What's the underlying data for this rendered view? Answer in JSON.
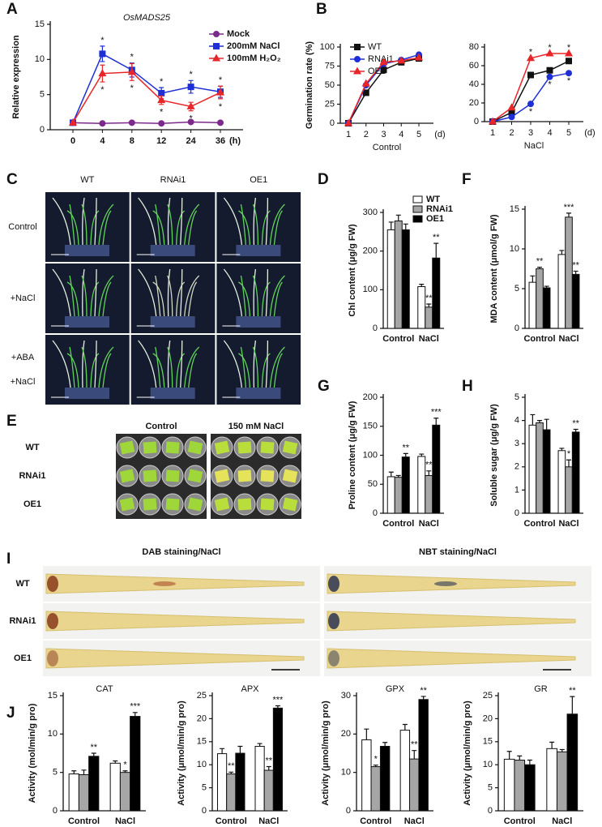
{
  "chart_data": [
    {
      "type": "line",
      "panel": "A",
      "title": "OsMADS25",
      "ylabel": "Relative expression",
      "xunit": "(h)",
      "categories": [
        "0",
        "4",
        "8",
        "12",
        "24",
        "36"
      ],
      "ylim": [
        0,
        15
      ],
      "yticks": [
        0,
        5,
        10,
        15
      ],
      "legend": "upper right",
      "series": [
        {
          "name": "Mock",
          "color": "#7b2a8c",
          "marker": "circle",
          "values": [
            1,
            0.9,
            1,
            0.9,
            1.1,
            1
          ]
        },
        {
          "name": "200mM NaCl",
          "color": "#1f2fd6",
          "marker": "square",
          "values": [
            1,
            10.8,
            8.5,
            5.2,
            6.1,
            5.4
          ],
          "errors": [
            0.1,
            1.1,
            1.0,
            0.8,
            0.9,
            0.8
          ],
          "sig": [
            null,
            "*",
            "*",
            "*",
            "*",
            "*"
          ]
        },
        {
          "name": "100mM H₂O₂",
          "color": "#e8262a",
          "marker": "triangle",
          "values": [
            1,
            8,
            8.2,
            4.2,
            3.3,
            5.3
          ],
          "errors": [
            0.1,
            1.2,
            1.2,
            0.6,
            0.6,
            0.9
          ],
          "sig": [
            null,
            "*",
            "*",
            "*",
            "*",
            "*"
          ],
          "sig_side": "below"
        }
      ]
    },
    {
      "type": "line",
      "panel": "B",
      "ylabel": "Germination rate (%)",
      "xlabel": "Control",
      "xunit": "(d)",
      "categories": [
        "1",
        "2",
        "3",
        "4",
        "5"
      ],
      "ylim": [
        0,
        100
      ],
      "yticks": [
        0,
        25,
        50,
        75,
        100
      ],
      "legend": "upper left",
      "series": [
        {
          "name": "WT",
          "color": "#111111",
          "marker": "square",
          "values": [
            0,
            40,
            70,
            80,
            85
          ]
        },
        {
          "name": "RNAi1",
          "color": "#1f2fd6",
          "marker": "circle",
          "values": [
            0,
            50,
            78,
            83,
            90
          ]
        },
        {
          "name": "OE1",
          "color": "#e8262a",
          "marker": "triangle",
          "values": [
            0,
            52,
            80,
            82,
            86
          ]
        }
      ]
    },
    {
      "type": "line",
      "xlabel": "NaCl",
      "xunit": "(d)",
      "categories": [
        "1",
        "2",
        "3",
        "4",
        "5"
      ],
      "ylim": [
        0,
        80
      ],
      "yticks": [
        0,
        20,
        40,
        60,
        80
      ],
      "series": [
        {
          "color": "#111111",
          "marker": "square",
          "values": [
            0,
            10,
            50,
            55,
            65
          ]
        },
        {
          "color": "#1f2fd6",
          "marker": "circle",
          "values": [
            0,
            5,
            19,
            48,
            52
          ],
          "sig": [
            null,
            null,
            "*",
            "*",
            "*"
          ],
          "sig_side": "below"
        },
        {
          "color": "#e8262a",
          "marker": "triangle",
          "values": [
            0,
            15,
            68,
            73,
            73
          ],
          "sig": [
            null,
            null,
            "*",
            "*",
            "*"
          ]
        }
      ]
    },
    {
      "type": "bar",
      "panel": "D",
      "ylabel": "Chl content (μg/g FW)",
      "categories": [
        "Control",
        "NaCl"
      ],
      "ylim": [
        0,
        300
      ],
      "yticks": [
        0,
        100,
        200,
        300
      ],
      "legend": "upper right",
      "series": [
        {
          "name": "WT",
          "color": "#ffffff",
          "values": [
            255,
            108
          ],
          "errors": [
            20,
            6
          ]
        },
        {
          "name": "RNAi1",
          "color": "#a6a6a6",
          "values": [
            278,
            55
          ],
          "errors": [
            15,
            8
          ],
          "sig": [
            null,
            "**"
          ]
        },
        {
          "name": "OE1",
          "color": "#000000",
          "values": [
            255,
            182
          ],
          "errors": [
            15,
            38
          ],
          "sig": [
            null,
            "**"
          ]
        }
      ]
    },
    {
      "type": "bar",
      "panel": "F",
      "ylabel": "MDA content (μmol/g FW)",
      "categories": [
        "Control",
        "NaCl"
      ],
      "ylim": [
        0,
        15
      ],
      "yticks": [
        0,
        5,
        10,
        15
      ],
      "series": [
        {
          "color": "#ffffff",
          "values": [
            5.8,
            9.3
          ],
          "errors": [
            0.8,
            0.5
          ]
        },
        {
          "color": "#a6a6a6",
          "values": [
            7.5,
            14
          ],
          "errors": [
            0.2,
            0.5
          ],
          "sig": [
            "**",
            "***"
          ]
        },
        {
          "color": "#000000",
          "values": [
            5.1,
            6.8
          ],
          "errors": [
            0.2,
            0.4
          ],
          "sig": [
            null,
            "**"
          ]
        }
      ]
    },
    {
      "type": "bar",
      "panel": "G",
      "ylabel": "Proline content (μg/g FW)",
      "categories": [
        "Control",
        "NaCl"
      ],
      "ylim": [
        0,
        200
      ],
      "yticks": [
        0,
        50,
        100,
        150,
        200
      ],
      "series": [
        {
          "color": "#ffffff",
          "values": [
            63,
            98
          ],
          "errors": [
            8,
            4
          ]
        },
        {
          "color": "#a6a6a6",
          "values": [
            62,
            65
          ],
          "errors": [
            3,
            8
          ],
          "sig": [
            null,
            "**"
          ]
        },
        {
          "color": "#000000",
          "values": [
            97,
            152
          ],
          "errors": [
            6,
            12
          ],
          "sig": [
            "**",
            "***"
          ]
        }
      ]
    },
    {
      "type": "bar",
      "panel": "H",
      "ylabel": "Soluble sugar (μg/g FW)",
      "categories": [
        "Control",
        "NaCl"
      ],
      "ylim": [
        0,
        5
      ],
      "yticks": [
        0,
        1,
        2,
        3,
        4,
        5
      ],
      "series": [
        {
          "color": "#ffffff",
          "values": [
            3.8,
            2.7
          ],
          "errors": [
            0.45,
            0.1
          ]
        },
        {
          "color": "#a6a6a6",
          "values": [
            3.9,
            2.0
          ],
          "errors": [
            0.1,
            0.3
          ],
          "sig": [
            null,
            "*"
          ]
        },
        {
          "color": "#000000",
          "values": [
            3.6,
            3.5
          ],
          "errors": [
            0.45,
            0.12
          ],
          "sig": [
            null,
            "**"
          ]
        }
      ]
    },
    {
      "type": "bar",
      "panel": "J",
      "title": "CAT",
      "ylabel": "Activity (mol/min/g pro)",
      "categories": [
        "Control",
        "NaCl"
      ],
      "ylim": [
        0,
        15
      ],
      "yticks": [
        0,
        5,
        10,
        15
      ],
      "series": [
        {
          "color": "#ffffff",
          "values": [
            4.8,
            6.2
          ],
          "errors": [
            0.4,
            0.3
          ]
        },
        {
          "color": "#a6a6a6",
          "values": [
            4.7,
            5.0
          ],
          "errors": [
            0.6,
            0.2
          ],
          "sig": [
            null,
            "*"
          ]
        },
        {
          "color": "#000000",
          "values": [
            7.1,
            12.3
          ],
          "errors": [
            0.4,
            0.5
          ],
          "sig": [
            "**",
            "***"
          ]
        }
      ]
    },
    {
      "type": "bar",
      "title": "APX",
      "ylabel": "Activity (μmol/min/g pro)",
      "categories": [
        "Control",
        "NaCl"
      ],
      "ylim": [
        0,
        25
      ],
      "yticks": [
        0,
        5,
        10,
        15,
        20,
        25
      ],
      "series": [
        {
          "color": "#ffffff",
          "values": [
            12.4,
            14
          ],
          "errors": [
            1.1,
            0.6
          ]
        },
        {
          "color": "#a6a6a6",
          "values": [
            8,
            8.8
          ],
          "errors": [
            0.4,
            0.8
          ],
          "sig": [
            "**",
            "**"
          ]
        },
        {
          "color": "#000000",
          "values": [
            12.5,
            22.3
          ],
          "errors": [
            1.5,
            0.5
          ],
          "sig": [
            null,
            "***"
          ]
        }
      ]
    },
    {
      "type": "bar",
      "title": "GPX",
      "ylabel": "Activity (μmol/min/g pro)",
      "categories": [
        "Control",
        "NaCl"
      ],
      "ylim": [
        0,
        30
      ],
      "yticks": [
        0,
        10,
        20,
        30
      ],
      "series": [
        {
          "color": "#ffffff",
          "values": [
            18.5,
            21
          ],
          "errors": [
            2.8,
            1.5
          ]
        },
        {
          "color": "#a6a6a6",
          "values": [
            11.5,
            13.5
          ],
          "errors": [
            0.4,
            2.2
          ],
          "sig": [
            "*",
            "**"
          ]
        },
        {
          "color": "#000000",
          "values": [
            16.8,
            29
          ],
          "errors": [
            1.0,
            0.8
          ],
          "sig": [
            null,
            "**"
          ]
        }
      ]
    },
    {
      "type": "bar",
      "title": "GR",
      "ylabel": "Activity (μmol/min/g pro)",
      "categories": [
        "Control",
        "NaCl"
      ],
      "ylim": [
        0,
        25
      ],
      "yticks": [
        0,
        5,
        10,
        15,
        20,
        25
      ],
      "series": [
        {
          "color": "#ffffff",
          "values": [
            11.2,
            13.5
          ],
          "errors": [
            1.7,
            1.4
          ]
        },
        {
          "color": "#a6a6a6",
          "values": [
            11,
            12.8
          ],
          "errors": [
            0.9,
            0.5
          ]
        },
        {
          "color": "#000000",
          "values": [
            10,
            21
          ],
          "errors": [
            1.0,
            3.8
          ],
          "sig": [
            null,
            "**"
          ]
        }
      ]
    }
  ],
  "photos": {
    "C": {
      "panel": "C",
      "columns": [
        "WT",
        "RNAi1",
        "OE1"
      ],
      "rows": [
        [
          "Control"
        ],
        [
          "+NaCl"
        ],
        [
          "+ABA",
          "+NaCl"
        ]
      ]
    },
    "E": {
      "panel": "E",
      "columns": [
        "Control",
        "150 mM NaCl"
      ],
      "rows": [
        "WT",
        "RNAi1",
        "OE1"
      ]
    },
    "I": {
      "panel": "I",
      "columns": [
        "DAB staining/NaCl",
        "NBT staining/NaCl"
      ],
      "rows": [
        "WT",
        "RNAi1",
        "OE1"
      ]
    }
  }
}
